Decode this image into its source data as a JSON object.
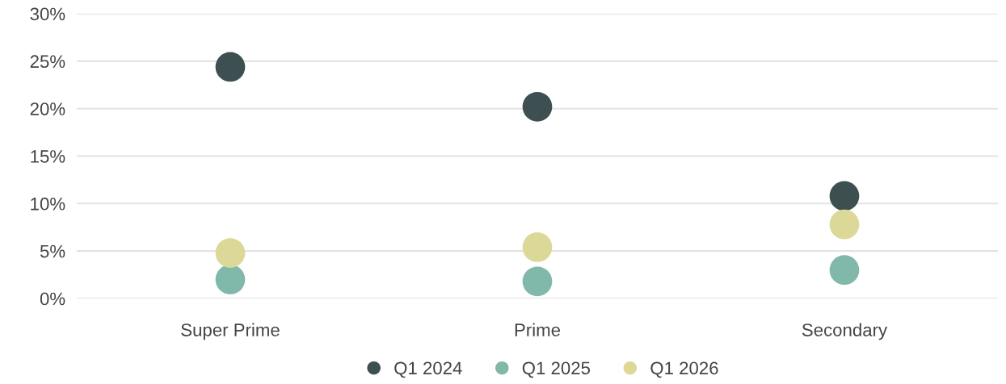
{
  "chart_data": {
    "type": "scatter",
    "categories": [
      "Super Prime",
      "Prime",
      "Secondary"
    ],
    "series": [
      {
        "name": "Q1 2024",
        "color": "#3d4f51",
        "values": [
          24.4,
          20.2,
          10.8
        ]
      },
      {
        "name": "Q1 2025",
        "color": "#80b9a9",
        "values": [
          2.0,
          1.8,
          3.0
        ]
      },
      {
        "name": "Q1 2026",
        "color": "#dcd898",
        "values": [
          4.8,
          5.4,
          7.8
        ]
      }
    ],
    "ylim": [
      0,
      30
    ],
    "yticks": [
      {
        "value": 0,
        "label": "0%"
      },
      {
        "value": 5,
        "label": "5%"
      },
      {
        "value": 10,
        "label": "10%"
      },
      {
        "value": 15,
        "label": "15%"
      },
      {
        "value": 20,
        "label": "20%"
      },
      {
        "value": 25,
        "label": "25%"
      },
      {
        "value": 30,
        "label": "30%"
      }
    ],
    "grid": "y",
    "legend": "bottom",
    "marker": "circle"
  }
}
